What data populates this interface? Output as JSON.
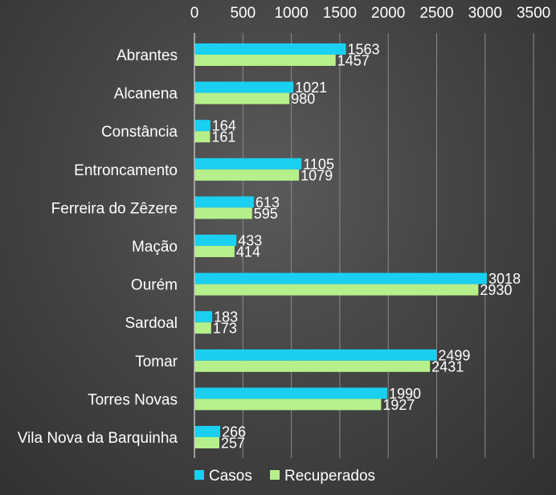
{
  "chart_data": {
    "type": "bar",
    "orientation": "horizontal",
    "categories": [
      "Abrantes",
      "Alcanena",
      "Constância",
      "Entroncamento",
      "Ferreira do Zêzere",
      "Mação",
      "Ourém",
      "Sardoal",
      "Tomar",
      "Torres Novas",
      "Vila Nova da Barquinha"
    ],
    "series": [
      {
        "name": "Casos",
        "color": "#1ad0f0",
        "values": [
          1563,
          1021,
          164,
          1105,
          613,
          433,
          3018,
          183,
          2499,
          1990,
          266
        ]
      },
      {
        "name": "Recuperados",
        "color": "#b6f08a",
        "values": [
          1457,
          980,
          161,
          1079,
          595,
          414,
          2930,
          173,
          2431,
          1927,
          257
        ]
      }
    ],
    "xlim": [
      0,
      3500
    ],
    "xticks": [
      0,
      500,
      1000,
      1500,
      2000,
      2500,
      3000,
      3500
    ],
    "xaxis_position": "top",
    "grid": true,
    "legend": "bottom-left",
    "data_labels": true
  }
}
